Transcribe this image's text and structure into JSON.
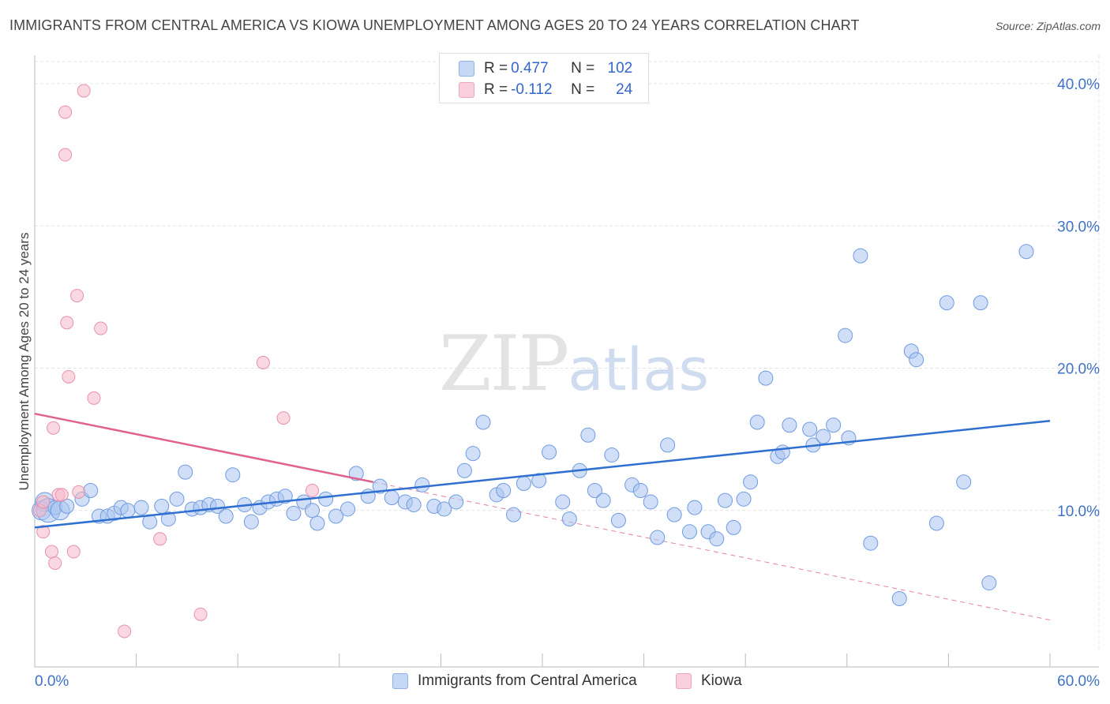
{
  "header": {
    "title": "IMMIGRANTS FROM CENTRAL AMERICA VS KIOWA UNEMPLOYMENT AMONG AGES 20 TO 24 YEARS CORRELATION CHART",
    "source": "Source: ZipAtlas.com"
  },
  "watermark": {
    "zip": "ZIP",
    "atlas": "atlas"
  },
  "legend": {
    "rows": [
      {
        "r_label": "R =",
        "r_value": "0.477",
        "n_label": "N =",
        "n_value": "102",
        "color": "#a9c4f0"
      },
      {
        "r_label": "R =",
        "r_value": "-0.112",
        "n_label": "N =",
        "n_value": "24",
        "color": "#f5b8cb"
      }
    ]
  },
  "bottom_legend": {
    "items": [
      {
        "label": "Immigrants from Central America",
        "color": "#a9c4f0"
      },
      {
        "label": "Kiowa",
        "color": "#f5b8cb"
      }
    ]
  },
  "colors": {
    "blue_fill": "#a9c4f0",
    "blue_stroke": "#6f9be0",
    "blue_line": "#2f6fd0",
    "pink_fill": "#f5b8cb",
    "pink_stroke": "#e890ab",
    "pink_line": "#e0628f",
    "grid": "#e3e3e3",
    "tick_label": "#3f72c6"
  },
  "chart_data": {
    "type": "scatter",
    "title": "IMMIGRANTS FROM CENTRAL AMERICA VS KIOWA UNEMPLOYMENT AMONG AGES 20 TO 24 YEARS CORRELATION CHART",
    "xlabel": "",
    "ylabel": "Unemployment Among Ages 20 to 24 years",
    "xlim": [
      0,
      60
    ],
    "ylim": [
      0,
      42
    ],
    "x_tick_labels": [
      "0.0%",
      "60.0%"
    ],
    "y_ticks": [
      10,
      20,
      30,
      40
    ],
    "y_tick_labels": [
      "10.0%",
      "20.0%",
      "30.0%",
      "40.0%"
    ],
    "grid": true,
    "legend_position": "top-center",
    "series": [
      {
        "name": "Immigrants from Central America",
        "r": 0.477,
        "n": 102,
        "trend": {
          "x": [
            0,
            60
          ],
          "y": [
            8.8,
            16.3
          ]
        },
        "points": [
          [
            0.4,
            10.0,
            2
          ],
          [
            0.6,
            10.6,
            2
          ],
          [
            0.8,
            10.0,
            3
          ],
          [
            1.2,
            10.2,
            1
          ],
          [
            1.5,
            10.0,
            2
          ],
          [
            1.9,
            10.3,
            1
          ],
          [
            2.8,
            10.8,
            1
          ],
          [
            3.3,
            11.4,
            1
          ],
          [
            3.8,
            9.6,
            1
          ],
          [
            4.3,
            9.6,
            1
          ],
          [
            4.7,
            9.8,
            1
          ],
          [
            5.1,
            10.2,
            1
          ],
          [
            5.5,
            10.0,
            1
          ],
          [
            6.3,
            10.2,
            1
          ],
          [
            6.8,
            9.2,
            1
          ],
          [
            7.5,
            10.3,
            1
          ],
          [
            7.9,
            9.4,
            1
          ],
          [
            8.4,
            10.8,
            1
          ],
          [
            8.9,
            12.7,
            1
          ],
          [
            9.3,
            10.1,
            1
          ],
          [
            9.8,
            10.2,
            1
          ],
          [
            10.3,
            10.4,
            1
          ],
          [
            10.8,
            10.3,
            1
          ],
          [
            11.3,
            9.6,
            1
          ],
          [
            11.7,
            12.5,
            1
          ],
          [
            12.4,
            10.4,
            1
          ],
          [
            12.8,
            9.2,
            1
          ],
          [
            13.3,
            10.2,
            1
          ],
          [
            13.8,
            10.6,
            1
          ],
          [
            14.3,
            10.8,
            1
          ],
          [
            14.8,
            11.0,
            1
          ],
          [
            15.3,
            9.8,
            1
          ],
          [
            15.9,
            10.6,
            1
          ],
          [
            16.4,
            10.0,
            1
          ],
          [
            16.7,
            9.1,
            1
          ],
          [
            17.2,
            10.8,
            1
          ],
          [
            17.8,
            9.6,
            1
          ],
          [
            18.5,
            10.1,
            1
          ],
          [
            19.0,
            12.6,
            1
          ],
          [
            19.7,
            11.0,
            1
          ],
          [
            20.4,
            11.7,
            1
          ],
          [
            21.1,
            10.9,
            1
          ],
          [
            21.9,
            10.6,
            1
          ],
          [
            22.4,
            10.4,
            1
          ],
          [
            22.9,
            11.8,
            1
          ],
          [
            23.6,
            10.3,
            1
          ],
          [
            24.2,
            10.1,
            1
          ],
          [
            24.9,
            10.6,
            1
          ],
          [
            25.4,
            12.8,
            1
          ],
          [
            25.9,
            14.0,
            1
          ],
          [
            26.5,
            16.2,
            1
          ],
          [
            27.3,
            11.1,
            1
          ],
          [
            27.7,
            11.4,
            1
          ],
          [
            28.3,
            9.7,
            1
          ],
          [
            28.9,
            11.9,
            1
          ],
          [
            29.8,
            12.1,
            1
          ],
          [
            30.4,
            14.1,
            1
          ],
          [
            31.2,
            10.6,
            1
          ],
          [
            31.6,
            9.4,
            1
          ],
          [
            32.2,
            12.8,
            1
          ],
          [
            32.7,
            15.3,
            1
          ],
          [
            33.1,
            11.4,
            1
          ],
          [
            33.6,
            10.7,
            1
          ],
          [
            34.1,
            13.9,
            1
          ],
          [
            34.5,
            9.3,
            1
          ],
          [
            35.3,
            11.8,
            1
          ],
          [
            35.8,
            11.4,
            1
          ],
          [
            36.4,
            10.6,
            1
          ],
          [
            36.8,
            8.1,
            1
          ],
          [
            37.4,
            14.6,
            1
          ],
          [
            37.8,
            9.7,
            1
          ],
          [
            38.7,
            8.5,
            1
          ],
          [
            39.0,
            10.2,
            1
          ],
          [
            39.8,
            8.5,
            1
          ],
          [
            40.3,
            8.0,
            1
          ],
          [
            40.8,
            10.7,
            1
          ],
          [
            41.3,
            8.8,
            1
          ],
          [
            41.9,
            10.8,
            1
          ],
          [
            42.3,
            12.0,
            1
          ],
          [
            42.7,
            16.2,
            1
          ],
          [
            43.2,
            19.3,
            1
          ],
          [
            43.9,
            13.8,
            1
          ],
          [
            44.2,
            14.1,
            1
          ],
          [
            44.6,
            16.0,
            1
          ],
          [
            45.8,
            15.7,
            1
          ],
          [
            46.0,
            14.6,
            1
          ],
          [
            46.6,
            15.2,
            1
          ],
          [
            47.2,
            16.0,
            1
          ],
          [
            47.9,
            22.3,
            1
          ],
          [
            48.1,
            15.1,
            1
          ],
          [
            48.8,
            27.9,
            1
          ],
          [
            49.4,
            7.7,
            1
          ],
          [
            51.1,
            3.8,
            1
          ],
          [
            51.8,
            21.2,
            1
          ],
          [
            52.1,
            20.6,
            1
          ],
          [
            53.3,
            9.1,
            1
          ],
          [
            53.9,
            24.6,
            1
          ],
          [
            54.9,
            12.0,
            1
          ],
          [
            55.9,
            24.6,
            1
          ],
          [
            56.4,
            4.9,
            1
          ],
          [
            58.6,
            28.2,
            1
          ]
        ]
      },
      {
        "name": "Kiowa",
        "r": -0.112,
        "n": 24,
        "trend": {
          "x": [
            0,
            20
          ],
          "y": [
            16.8,
            12.0
          ]
        },
        "trend_extended": {
          "x": [
            20,
            60
          ],
          "y": [
            12.0,
            2.3
          ]
        },
        "points": [
          [
            0.3,
            10.0,
            1
          ],
          [
            0.5,
            10.6,
            1
          ],
          [
            0.5,
            8.5,
            1
          ],
          [
            1.0,
            7.1,
            1
          ],
          [
            1.1,
            15.8,
            1
          ],
          [
            1.2,
            6.3,
            1
          ],
          [
            1.4,
            11.1,
            1
          ],
          [
            1.6,
            11.1,
            1
          ],
          [
            1.8,
            38.0,
            1
          ],
          [
            1.8,
            35.0,
            1
          ],
          [
            1.9,
            23.2,
            1
          ],
          [
            2.0,
            19.4,
            1
          ],
          [
            2.3,
            7.1,
            1
          ],
          [
            2.5,
            25.1,
            1
          ],
          [
            2.6,
            11.3,
            1
          ],
          [
            2.9,
            39.5,
            1
          ],
          [
            3.5,
            17.9,
            1
          ],
          [
            3.9,
            22.8,
            1
          ],
          [
            5.3,
            1.5,
            1
          ],
          [
            7.4,
            8.0,
            1
          ],
          [
            9.8,
            2.7,
            1
          ],
          [
            13.5,
            20.4,
            1
          ],
          [
            14.7,
            16.5,
            1
          ],
          [
            16.4,
            11.4,
            1
          ]
        ]
      }
    ]
  }
}
